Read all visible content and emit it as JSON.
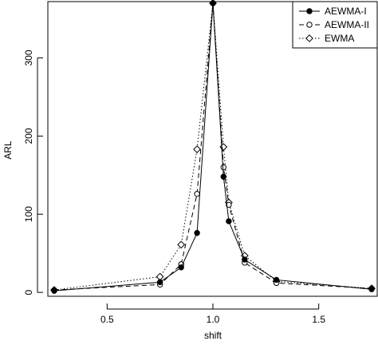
{
  "chart_data": {
    "type": "line",
    "title": "",
    "xlabel": "shift",
    "ylabel": "ARL",
    "xlim": [
      0.22,
      1.78
    ],
    "ylim": [
      -5,
      372
    ],
    "x_ticks": [
      0.5,
      1.0,
      1.5
    ],
    "x_tick_labels": [
      "0.5",
      "1.0",
      "1.5"
    ],
    "y_ticks": [
      0,
      100,
      200,
      300
    ],
    "y_tick_labels": [
      "0",
      "100",
      "200",
      "300"
    ],
    "grid": false,
    "legend_position": "top-right",
    "series": [
      {
        "name": "AEWMA-I",
        "line_style": "solid",
        "marker": "filled-circle",
        "color": "#000000",
        "x": [
          0.25,
          0.75,
          0.85,
          0.925,
          1.0,
          1.05,
          1.075,
          1.15,
          1.3,
          1.75
        ],
        "y": [
          2,
          13,
          32,
          76,
          370,
          148,
          91,
          42,
          16,
          4
        ]
      },
      {
        "name": "AEWMA-II",
        "line_style": "dashed",
        "marker": "open-circle",
        "color": "#000000",
        "x": [
          0.25,
          0.75,
          0.85,
          0.925,
          1.0,
          1.05,
          1.075,
          1.15,
          1.3,
          1.75
        ],
        "y": [
          3,
          10,
          36,
          126,
          370,
          160,
          112,
          38,
          12,
          5
        ]
      },
      {
        "name": "EWMA",
        "line_style": "dotted",
        "marker": "open-diamond",
        "color": "#000000",
        "x": [
          0.25,
          0.75,
          0.85,
          0.925,
          1.0,
          1.05,
          1.075,
          1.15,
          1.3,
          1.75
        ],
        "y": [
          3,
          20,
          61,
          183,
          370,
          186,
          115,
          47,
          14,
          5
        ]
      }
    ]
  }
}
